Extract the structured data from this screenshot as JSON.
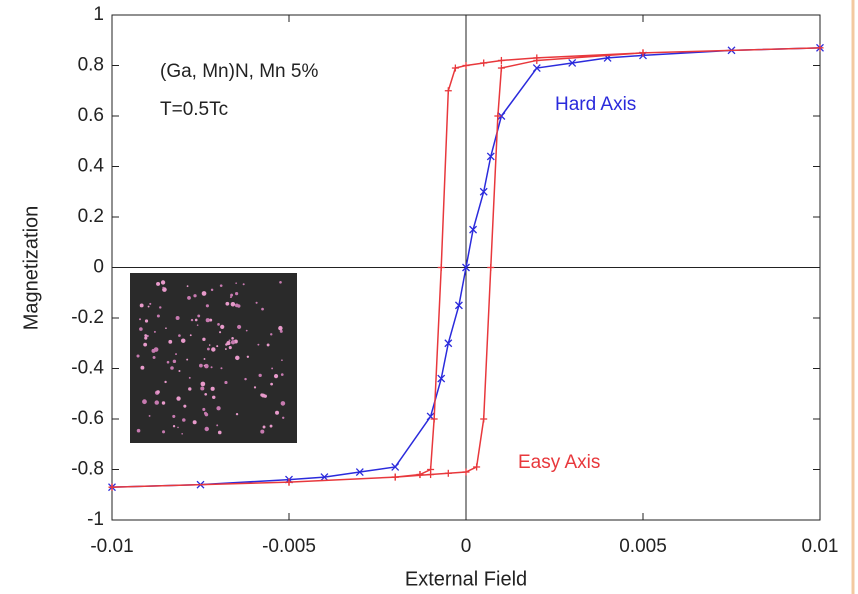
{
  "chart_data": {
    "type": "line",
    "x_label": "External Field",
    "y_label": "Magnetization",
    "annotations": [
      "(Ga, Mn)N, Mn 5%",
      "T=0.5Tc"
    ],
    "xlim": [
      -0.01,
      0.01
    ],
    "ylim": [
      -1,
      1
    ],
    "xticks": [
      -0.01,
      -0.005,
      0,
      0.005,
      0.01
    ],
    "yticks": [
      1,
      0.8,
      0.6,
      0.4,
      0.2,
      0,
      -0.2,
      -0.4,
      -0.6,
      -0.8,
      -1
    ],
    "series": [
      {
        "name": "Hard Axis",
        "color": "#2b2bdc",
        "marker": "x",
        "x": [
          -0.01,
          -0.0075,
          -0.005,
          -0.004,
          -0.003,
          -0.002,
          -0.001,
          -0.0007,
          -0.0005,
          -0.0002,
          0,
          0.0002,
          0.0005,
          0.0007,
          0.001,
          0.002,
          0.003,
          0.004,
          0.005,
          0.0075,
          0.01
        ],
        "values": [
          -0.87,
          -0.86,
          -0.84,
          -0.83,
          -0.81,
          -0.79,
          -0.59,
          -0.44,
          -0.3,
          -0.15,
          0,
          0.15,
          0.3,
          0.44,
          0.6,
          0.79,
          0.81,
          0.83,
          0.84,
          0.86,
          0.87
        ]
      },
      {
        "name": "Easy Axis",
        "color": "#e8383c",
        "marker": "+",
        "x": [
          -0.01,
          -0.005,
          -0.002,
          -0.001,
          -0.0005,
          0,
          0.0003,
          0.0005,
          0.0007,
          0.0009,
          0.001,
          0.002,
          0.005,
          0.01,
          0.005,
          0.002,
          0.001,
          0.0005,
          0,
          -0.0003,
          -0.0005,
          -0.0007,
          -0.0009,
          -0.001,
          -0.0013,
          -0.0013,
          -0.002,
          -0.005,
          -0.01
        ],
        "values": [
          -0.87,
          -0.85,
          -0.83,
          -0.82,
          -0.815,
          -0.81,
          -0.79,
          -0.6,
          0,
          0.6,
          0.79,
          0.82,
          0.85,
          0.87,
          0.85,
          0.83,
          0.82,
          0.81,
          0.8,
          0.79,
          0.7,
          0,
          -0.6,
          -0.8,
          -0.82,
          -0.82,
          -0.83,
          -0.85,
          -0.87
        ]
      }
    ]
  }
}
